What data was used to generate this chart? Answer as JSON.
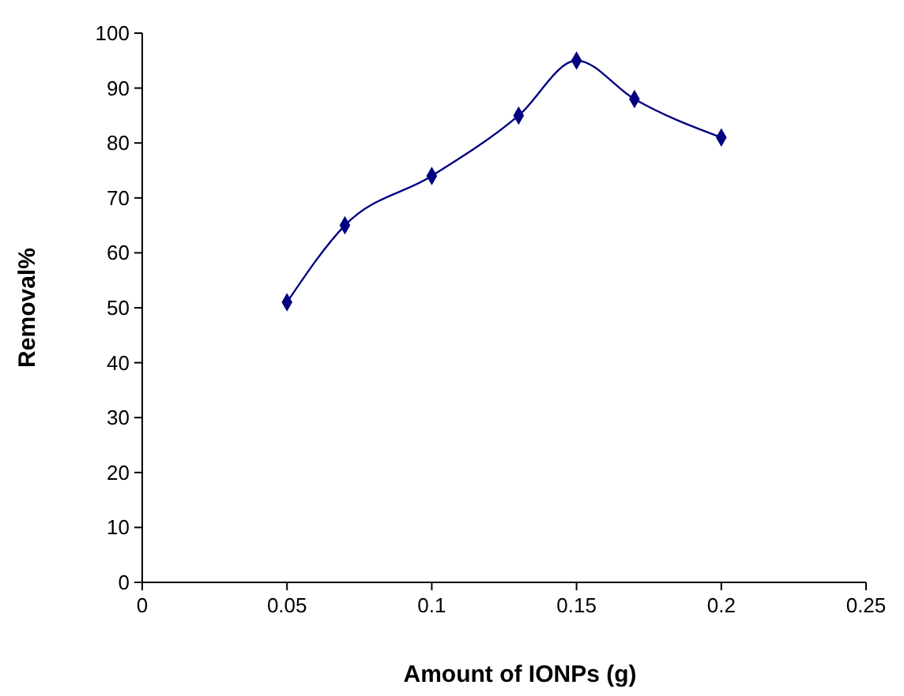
{
  "chart_data": {
    "type": "line",
    "xlabel": "Amount of IONPs (g)",
    "ylabel": "Removal%",
    "x": [
      0.05,
      0.07,
      0.1,
      0.13,
      0.15,
      0.17,
      0.2
    ],
    "series": [
      {
        "color": "#000080",
        "values": [
          51,
          65,
          74,
          85,
          95,
          88,
          81
        ]
      }
    ],
    "xlim": [
      0,
      0.25
    ],
    "xticks": [
      0,
      0.05,
      0.1,
      0.15,
      0.2,
      0.25
    ],
    "ylim": [
      0,
      100
    ],
    "yticks": [
      0,
      10,
      20,
      30,
      40,
      50,
      60,
      70,
      80,
      90,
      100
    ],
    "grid": false,
    "marker": "diamond",
    "line_style": "solid"
  }
}
